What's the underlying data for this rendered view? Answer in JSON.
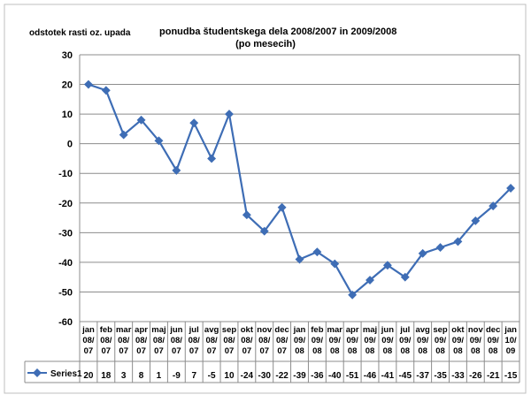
{
  "chart_data": {
    "type": "line",
    "title": "ponudba študentskega dela 2008/2007 in 2009/2008",
    "subtitle": "(po mesecih)",
    "ylabel": "odstotek rasti oz. upada",
    "xlabel": "",
    "ylim": [
      -60,
      30
    ],
    "yticks": [
      30,
      20,
      10,
      0,
      -10,
      -20,
      -30,
      -40,
      -50,
      -60
    ],
    "grid": true,
    "legend_placement": "bottom-left (data table)",
    "series_color": "#3e6db5",
    "categories": [
      [
        "jan",
        "08/",
        "07"
      ],
      [
        "feb",
        "08/",
        "07"
      ],
      [
        "mar",
        "08/",
        "07"
      ],
      [
        "apr",
        "08/",
        "07"
      ],
      [
        "maj",
        "08/",
        "07"
      ],
      [
        "jun",
        "08/",
        "07"
      ],
      [
        "jul",
        "08/",
        "07"
      ],
      [
        "avg",
        "08/",
        "07"
      ],
      [
        "sep",
        "08/",
        "07"
      ],
      [
        "okt",
        "08/",
        "07"
      ],
      [
        "nov",
        "08/",
        "07"
      ],
      [
        "dec",
        "08/",
        "07"
      ],
      [
        "jan",
        "09/",
        "08"
      ],
      [
        "feb",
        "09/",
        "08"
      ],
      [
        "mar",
        "09/",
        "08"
      ],
      [
        "apr",
        "09/",
        "08"
      ],
      [
        "maj",
        "09/",
        "08"
      ],
      [
        "jun",
        "09/",
        "08"
      ],
      [
        "jul",
        "09/",
        "08"
      ],
      [
        "avg",
        "09/",
        "08"
      ],
      [
        "sep",
        "09/",
        "08"
      ],
      [
        "okt",
        "09/",
        "08"
      ],
      [
        "nov",
        "09/",
        "08"
      ],
      [
        "dec",
        "09/",
        "08"
      ],
      [
        "jan",
        "10/",
        "09"
      ]
    ],
    "series": [
      {
        "name": "Series1",
        "values": [
          20,
          18,
          3,
          8,
          1,
          -9,
          7,
          -5,
          10,
          -24,
          -30,
          -22,
          -39,
          -36,
          -40,
          -51,
          -46,
          -41,
          -45,
          -37,
          -35,
          -33,
          -26,
          -21,
          -15
        ],
        "plotted": [
          20,
          18,
          3,
          8,
          1,
          -9,
          7,
          -5,
          10,
          -24,
          -29.5,
          -21.5,
          -39,
          -36.5,
          -40.5,
          -51,
          -46,
          -41,
          -45,
          -37,
          -35,
          -33,
          -26,
          -21,
          -15
        ]
      }
    ]
  }
}
